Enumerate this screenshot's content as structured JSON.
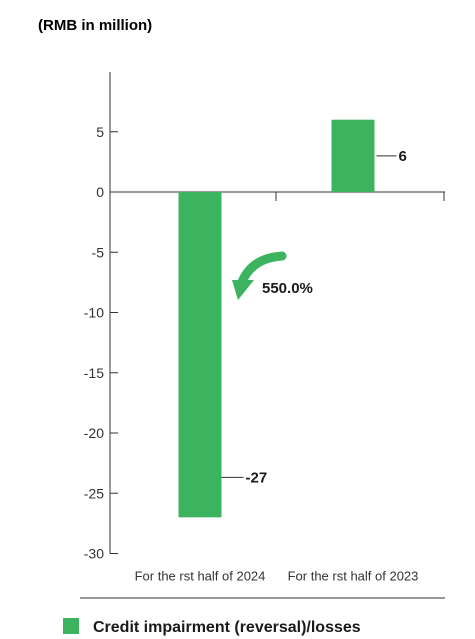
{
  "chart_data": {
    "type": "bar",
    "unit_label": "(RMB in million)",
    "categories": [
      "For the   rst half of 2024",
      "For the   rst half of 2023"
    ],
    "series": [
      {
        "name": "Credit impairment (reversal)/losses",
        "values": [
          -27,
          6
        ]
      }
    ],
    "data_labels": [
      "-27",
      "6"
    ],
    "yticks": [
      5,
      0,
      -5,
      -10,
      -15,
      -20,
      -25,
      -30
    ],
    "ylim": [
      -30,
      8.5
    ],
    "annotation": "550.0%",
    "legend_position": "bottom",
    "colors": {
      "bar": "#3cb35f",
      "axis": "#333333"
    }
  }
}
